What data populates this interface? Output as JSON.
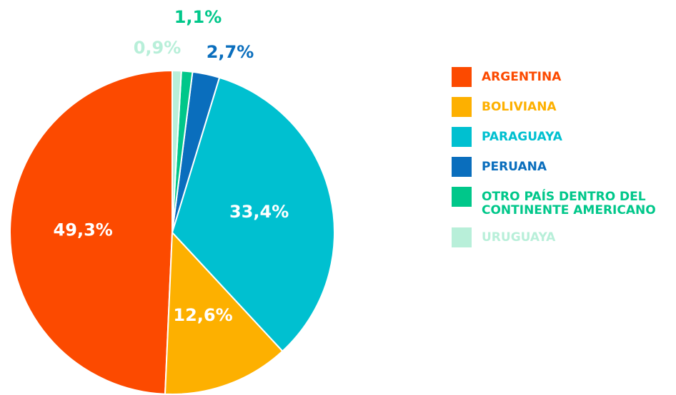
{
  "chart_data": {
    "type": "pie",
    "categories": [
      "ARGENTINA",
      "BOLIVIANA",
      "PARAGUAYA",
      "PERUANA",
      "OTRO PAÍS DENTRO DEL CONTINENTE AMERICANO",
      "URUGUAYA"
    ],
    "values": [
      49.3,
      12.6,
      33.4,
      2.7,
      1.1,
      0.9
    ],
    "value_labels": [
      "49,3%",
      "12,6%",
      "33,4%",
      "2,7%",
      "1,1%",
      "0,9%"
    ],
    "colors": [
      "#fc4a00",
      "#fdb000",
      "#00c0d0",
      "#0a6ebd",
      "#00c78a",
      "#b8efd9"
    ],
    "direction": "counterclockwise",
    "legend": "right"
  }
}
